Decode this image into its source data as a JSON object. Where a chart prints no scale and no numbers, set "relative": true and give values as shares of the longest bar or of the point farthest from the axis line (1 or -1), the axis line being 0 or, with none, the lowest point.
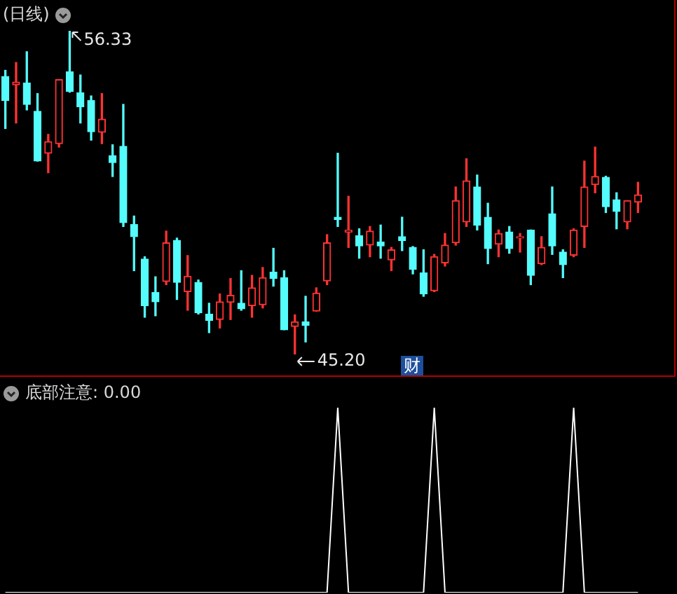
{
  "chart_data": [
    {
      "type": "candlestick",
      "title": "(日线)",
      "categories": [
        null,
        null,
        null,
        null,
        null,
        null,
        null,
        null,
        null,
        null,
        null,
        null,
        null,
        null,
        null,
        null,
        null,
        null,
        null,
        null,
        null,
        null,
        null,
        null,
        null,
        null,
        null,
        null,
        null,
        null,
        null,
        null,
        null,
        null,
        null,
        null,
        null,
        null,
        null,
        null,
        null,
        null,
        null,
        null,
        null,
        null,
        null,
        null,
        null,
        null,
        null,
        null,
        null,
        null,
        null,
        null,
        null,
        null,
        null,
        null
      ],
      "ohlc": [
        [
          54.76,
          54.97,
          52.97,
          53.93
        ],
        [
          54.47,
          55.24,
          53.16,
          54.57
        ],
        [
          54.54,
          55.61,
          53.61,
          53.8
        ],
        [
          53.56,
          54.17,
          51.85,
          51.85
        ],
        [
          52.12,
          52.77,
          51.45,
          52.52
        ],
        [
          52.45,
          54.65,
          52.33,
          54.65
        ],
        [
          54.92,
          56.33,
          54.22,
          54.25
        ],
        [
          54.2,
          54.81,
          53.16,
          53.72
        ],
        [
          53.93,
          54.09,
          52.57,
          52.86
        ],
        [
          52.84,
          54.17,
          52.45,
          53.29
        ],
        [
          52.04,
          52.41,
          51.32,
          51.8
        ],
        [
          52.36,
          53.8,
          49.6,
          49.73
        ],
        [
          49.67,
          49.96,
          48.08,
          49.25
        ],
        [
          48.48,
          48.56,
          46.48,
          46.88
        ],
        [
          47.33,
          47.87,
          46.53,
          47.01
        ],
        [
          47.71,
          49.44,
          47.6,
          49.04
        ],
        [
          49.12,
          49.2,
          47.09,
          47.68
        ],
        [
          47.36,
          48.6,
          46.72,
          47.89
        ],
        [
          47.68,
          47.76,
          46.59,
          46.64
        ],
        [
          46.59,
          46.96,
          45.95,
          46.37
        ],
        [
          46.4,
          47.28,
          46.11,
          47.01
        ],
        [
          46.99,
          47.81,
          46.4,
          47.23
        ],
        [
          46.96,
          48.08,
          46.72,
          46.77
        ],
        [
          46.88,
          47.92,
          46.48,
          47.49
        ],
        [
          46.91,
          48.19,
          46.8,
          47.84
        ],
        [
          48.03,
          48.85,
          47.55,
          47.81
        ],
        [
          47.84,
          48.08,
          46.05,
          46.05
        ],
        [
          46.16,
          46.56,
          45.2,
          46.32
        ],
        [
          46.32,
          47.2,
          45.63,
          46.2
        ],
        [
          46.69,
          47.49,
          46.69,
          47.31
        ],
        [
          47.73,
          49.32,
          47.6,
          49.04
        ],
        [
          49.92,
          52.12,
          49.6,
          49.84
        ],
        [
          49.41,
          50.64,
          48.88,
          49.48
        ],
        [
          49.28,
          49.52,
          48.51,
          48.93
        ],
        [
          48.96,
          49.6,
          48.56,
          49.44
        ],
        [
          49.07,
          49.65,
          48.51,
          48.93
        ],
        [
          48.45,
          48.88,
          48.08,
          48.8
        ],
        [
          49.25,
          49.92,
          48.77,
          49.12
        ],
        [
          48.88,
          48.91,
          47.97,
          48.13
        ],
        [
          48.0,
          48.8,
          47.2,
          47.28
        ],
        [
          47.39,
          48.64,
          47.36,
          48.56
        ],
        [
          48.35,
          49.36,
          48.24,
          48.96
        ],
        [
          49.04,
          50.96,
          48.96,
          50.49
        ],
        [
          49.76,
          51.93,
          49.6,
          51.17
        ],
        [
          50.96,
          51.37,
          49.48,
          49.65
        ],
        [
          49.92,
          50.4,
          48.32,
          48.84
        ],
        [
          48.99,
          49.48,
          48.56,
          49.36
        ],
        [
          49.41,
          49.6,
          48.68,
          48.84
        ],
        [
          49.2,
          49.36,
          48.72,
          49.25
        ],
        [
          49.48,
          49.48,
          47.6,
          47.92
        ],
        [
          48.32,
          49.25,
          48.29,
          48.88
        ],
        [
          50.04,
          50.96,
          48.64,
          48.93
        ],
        [
          48.72,
          48.8,
          47.84,
          48.29
        ],
        [
          48.61,
          49.52,
          48.56,
          49.48
        ],
        [
          49.6,
          51.85,
          48.88,
          50.96
        ],
        [
          51.04,
          52.33,
          50.76,
          51.32
        ],
        [
          51.29,
          51.33,
          50.08,
          50.28
        ],
        [
          50.52,
          50.76,
          49.52,
          50.12
        ],
        [
          49.76,
          50.49,
          49.52,
          50.49
        ],
        [
          50.44,
          51.12,
          50.08,
          50.69
        ]
      ],
      "colors": [
        "#54fcfc",
        "#ff3232",
        "#54fcfc",
        "#54fcfc",
        "#ff3232",
        "#ff3232",
        "#54fcfc",
        "#54fcfc",
        "#54fcfc",
        "#ff3232",
        "#54fcfc",
        "#54fcfc",
        "#54fcfc",
        "#54fcfc",
        "#54fcfc",
        "#ff3232",
        "#54fcfc",
        "#ff3232",
        "#54fcfc",
        "#54fcfc",
        "#ff3232",
        "#ff3232",
        "#54fcfc",
        "#ff3232",
        "#ff3232",
        "#54fcfc",
        "#54fcfc",
        "#ff3232",
        "#54fcfc",
        "#ff3232",
        "#ff3232",
        "#54fcfc",
        "#ff3232",
        "#54fcfc",
        "#ff3232",
        "#54fcfc",
        "#ff3232",
        "#54fcfc",
        "#54fcfc",
        "#54fcfc",
        "#ff3232",
        "#ff3232",
        "#ff3232",
        "#ff3232",
        "#54fcfc",
        "#54fcfc",
        "#ff3232",
        "#54fcfc",
        "#ff3232",
        "#54fcfc",
        "#ff3232",
        "#54fcfc",
        "#54fcfc",
        "#ff3232",
        "#ff3232",
        "#ff3232",
        "#54fcfc",
        "#54fcfc",
        "#ff3232",
        "#ff3232"
      ],
      "annotations": [
        "56.33",
        "45.20",
        "财"
      ]
    },
    {
      "type": "line",
      "title": "底部注意: 0.00",
      "relative": true,
      "color": "#ffffff",
      "categories": [
        null,
        null,
        null,
        null,
        null,
        null,
        null,
        null,
        null,
        null,
        null,
        null,
        null,
        null,
        null,
        null,
        null,
        null,
        null,
        null,
        null,
        null,
        null,
        null,
        null,
        null,
        null,
        null,
        null,
        null,
        null,
        null,
        null,
        null,
        null,
        null,
        null,
        null,
        null,
        null,
        null,
        null,
        null,
        null,
        null,
        null,
        null,
        null,
        null,
        null,
        null,
        null,
        null,
        null,
        null,
        null,
        null,
        null,
        null,
        null
      ],
      "values": [
        0,
        0,
        0,
        0,
        0,
        0,
        0,
        0,
        0,
        0,
        0,
        0,
        0,
        0,
        0,
        0,
        0,
        0,
        0,
        0,
        0,
        0,
        0,
        0,
        0,
        0,
        0,
        0,
        0,
        0,
        0,
        1,
        0,
        0,
        0,
        0,
        0,
        0,
        0,
        0,
        1,
        0,
        0,
        0,
        0,
        0,
        0,
        0,
        0,
        0,
        0,
        0,
        0,
        1,
        0,
        0,
        0,
        0,
        0,
        0
      ]
    }
  ]
}
